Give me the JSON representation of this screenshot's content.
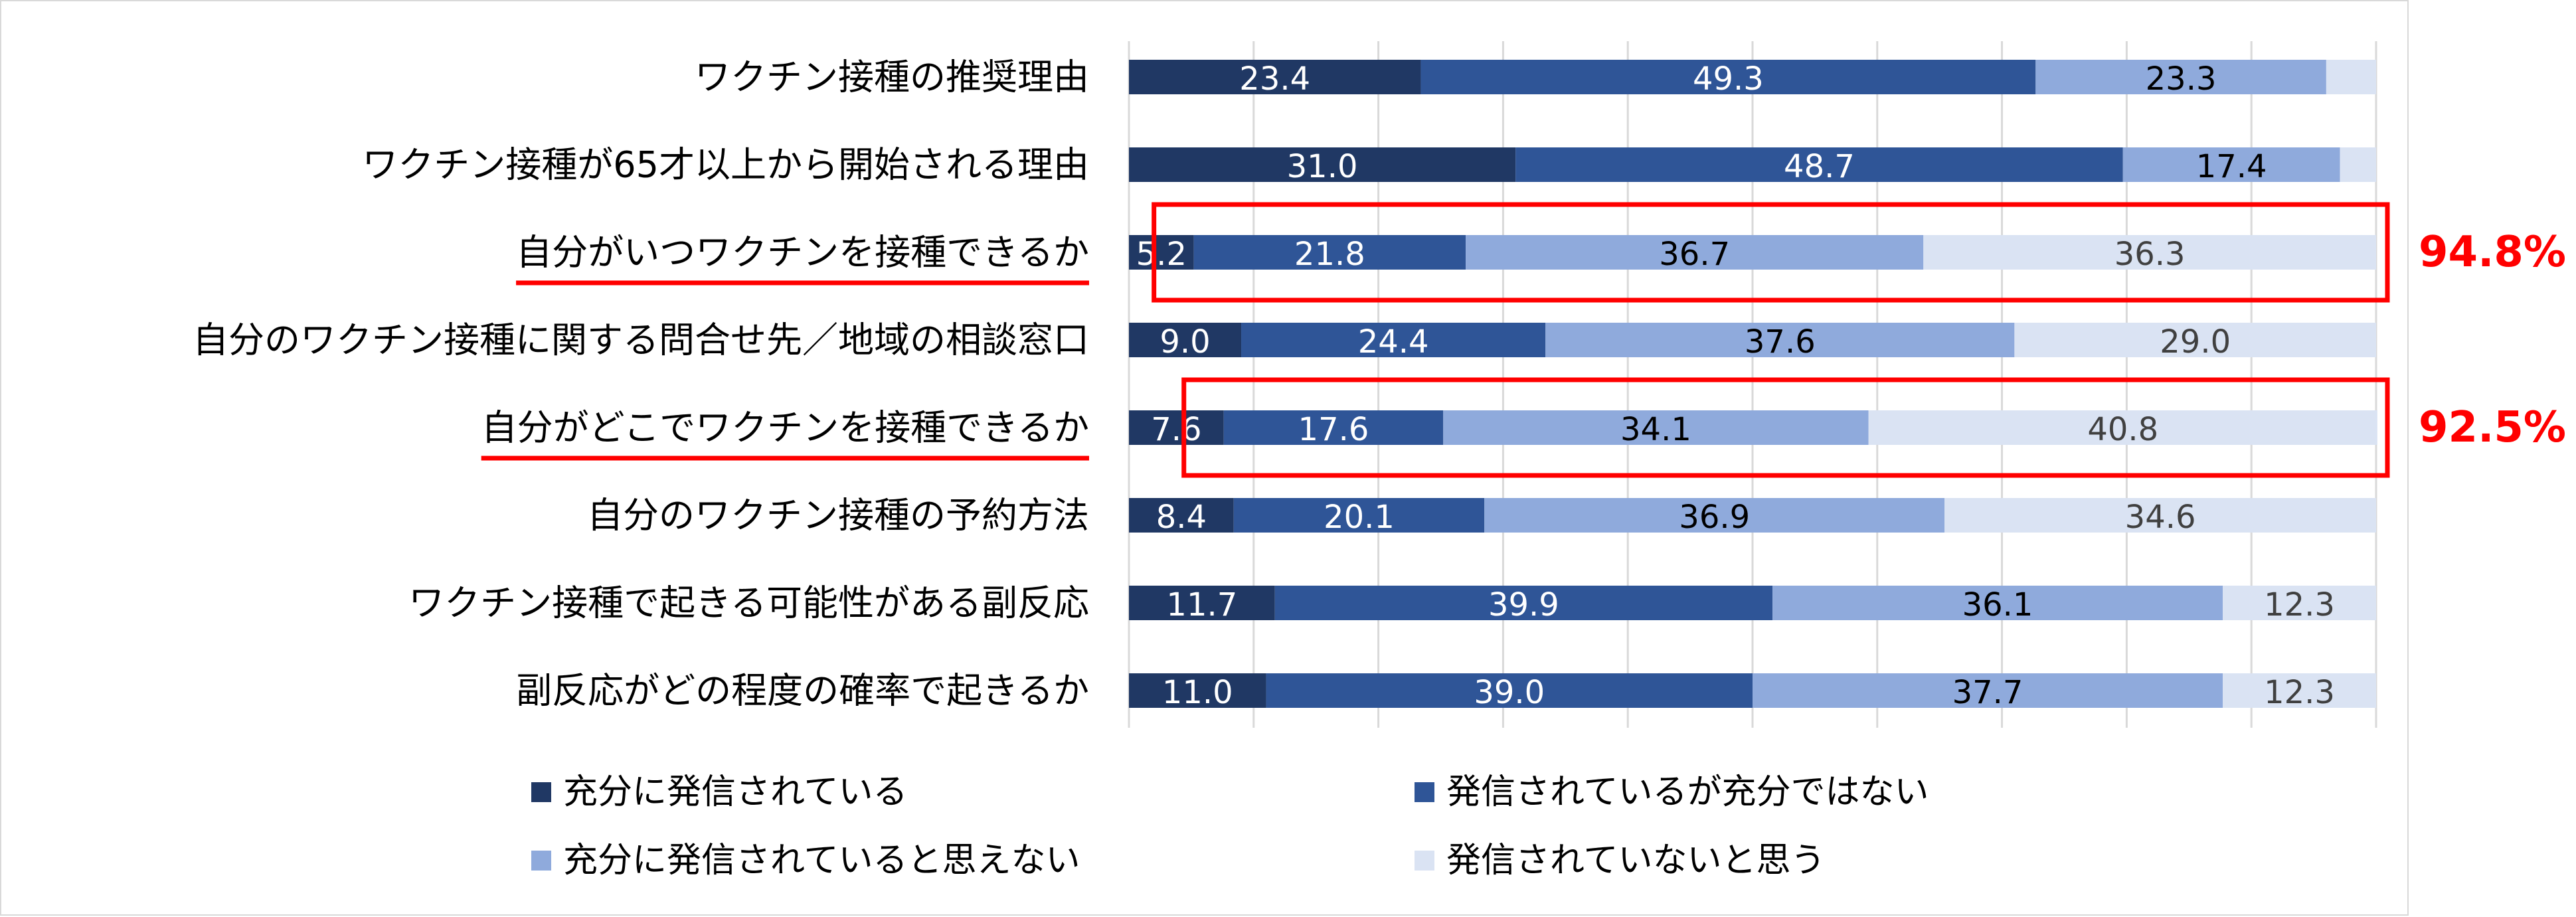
{
  "chart_data": {
    "type": "bar",
    "orientation": "horizontal",
    "stacked": true,
    "percent_stacked": true,
    "xlim": [
      0,
      100
    ],
    "grid": "vertical gridlines",
    "legend_position": "bottom",
    "categories": [
      "ワクチン接種の推奨理由",
      "ワクチン接種が65才以上から開始される理由",
      "自分がいつワクチンを接種できるか",
      "自分のワクチン接種に関する問合せ先／地域の相談窓口",
      "自分がどこでワクチンを接種できるか",
      "自分のワクチン接種の予約方法",
      "ワクチン接種で起きる可能性がある副反応",
      "副反応がどの程度の確率で起きるか"
    ],
    "underlined_categories": [
      2,
      4
    ],
    "series": [
      {
        "name": "充分に発信されている",
        "color": "#203864",
        "label_color": "#ffffff",
        "values": [
          23.4,
          31.0,
          5.2,
          9.0,
          7.6,
          8.4,
          11.7,
          11.0
        ],
        "labels": [
          "23.4",
          "31.0",
          "5.2",
          "9.0",
          "7.6",
          "8.4",
          "11.7",
          "11.0"
        ]
      },
      {
        "name": "発信されているが充分ではない",
        "color": "#2f5597",
        "label_color": "#ffffff",
        "values": [
          49.3,
          48.7,
          21.8,
          24.4,
          17.6,
          20.1,
          39.9,
          39.0
        ],
        "labels": [
          "49.3",
          "48.7",
          "21.8",
          "24.4",
          "17.6",
          "20.1",
          "39.9",
          "39.0"
        ]
      },
      {
        "name": "充分に発信されていると思えない",
        "color": "#8faadc",
        "label_color": "#000000",
        "values": [
          23.3,
          17.4,
          36.7,
          37.6,
          34.1,
          36.9,
          36.1,
          37.7
        ],
        "labels": [
          "23.3",
          "17.4",
          "36.7",
          "37.6",
          "34.1",
          "36.9",
          "36.1",
          "37.7"
        ]
      },
      {
        "name": "発信されていないと思う",
        "color": "#dae3f3",
        "label_color": "#404040",
        "values": [
          4.0,
          2.9,
          36.3,
          29.0,
          40.8,
          34.6,
          12.3,
          12.3
        ],
        "labels": [
          "",
          "",
          "36.3",
          "29.0",
          "40.8",
          "34.6",
          "12.3",
          "12.3"
        ]
      }
    ],
    "highlights": [
      {
        "row": 2,
        "label": "94.8%"
      },
      {
        "row": 4,
        "label": "92.5%"
      }
    ],
    "highlight_color": "#ff0000"
  }
}
